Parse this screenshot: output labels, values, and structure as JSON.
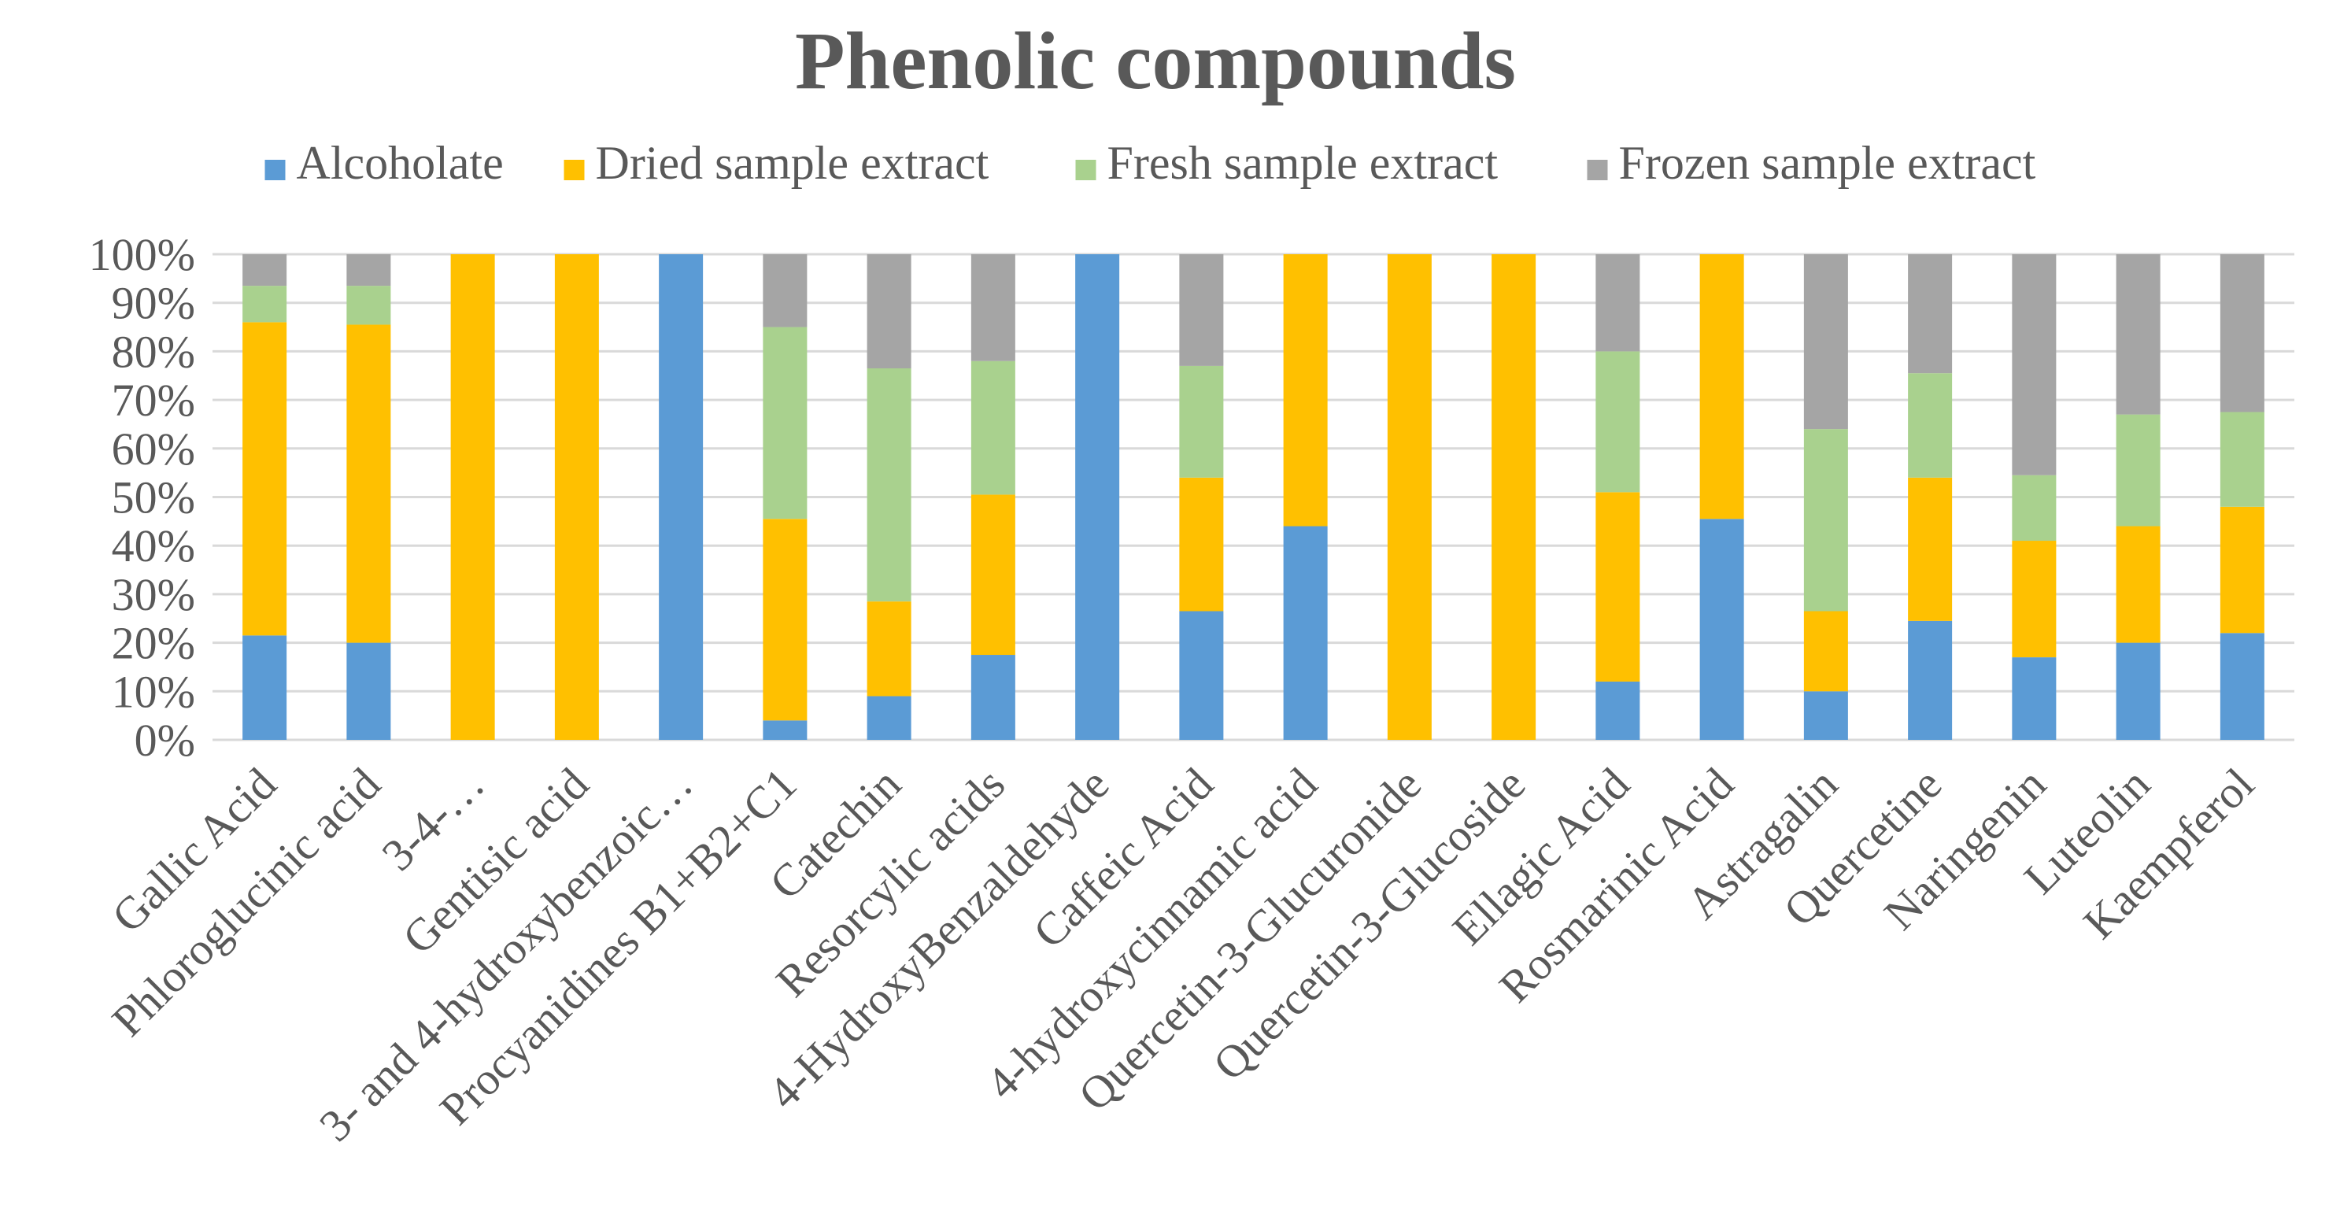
{
  "chart_data": {
    "type": "bar",
    "stacked": "percent",
    "title": "Phenolic compounds",
    "xlabel": "",
    "ylabel": "",
    "ylim": [
      0,
      100
    ],
    "y_ticks": [
      "0%",
      "10%",
      "20%",
      "30%",
      "40%",
      "50%",
      "60%",
      "70%",
      "80%",
      "90%",
      "100%"
    ],
    "grid": true,
    "legend_position": "top",
    "categories": [
      "Gallic Acid",
      "Phloroglucinic acid",
      "3-4-…",
      "Gentisic acid",
      "3- and 4-hydroxybenzoic…",
      "Procyanidines B1+B2+C1",
      "Catechin",
      "Resorcylic acids",
      "4-HydroxyBenzaldehyde",
      "Caffeic Acid",
      "4-hydroxycinnamic acid",
      "Quercetin-3-Glucuronide",
      "Quercetin-3-Glucoside",
      "Ellagic Acid",
      "Rosmarinic Acid",
      "Astragalin",
      "Quercetine",
      "Naringenin",
      "Luteolin",
      "Kaempferol"
    ],
    "series": [
      {
        "name": "Alcoholate",
        "color": "#5b9bd5",
        "values": [
          21.5,
          20,
          0,
          0,
          100,
          4,
          9,
          17.5,
          100,
          26.5,
          44,
          0,
          0,
          12,
          45.5,
          10,
          24.5,
          17,
          20,
          22
        ]
      },
      {
        "name": "Dried sample extract",
        "color": "#ffc000",
        "values": [
          64.5,
          65.5,
          100,
          100,
          0,
          41.5,
          19.5,
          33,
          0,
          27.5,
          56,
          100,
          100,
          39,
          54.5,
          16.5,
          29.5,
          24,
          24,
          26
        ]
      },
      {
        "name": "Fresh sample extract",
        "color": "#a9d18e",
        "values": [
          7.5,
          8,
          0,
          0,
          0,
          39.5,
          48,
          27.5,
          0,
          23,
          0,
          0,
          0,
          29,
          0,
          37.5,
          21.5,
          13.5,
          23,
          19.5
        ]
      },
      {
        "name": "Frozen sample extract",
        "color": "#a5a5a5",
        "values": [
          6.5,
          6.5,
          0,
          0,
          0,
          15,
          23.5,
          22,
          0,
          23,
          0,
          0,
          0,
          20,
          0,
          36,
          24.5,
          45.5,
          33,
          32.5
        ]
      }
    ]
  }
}
